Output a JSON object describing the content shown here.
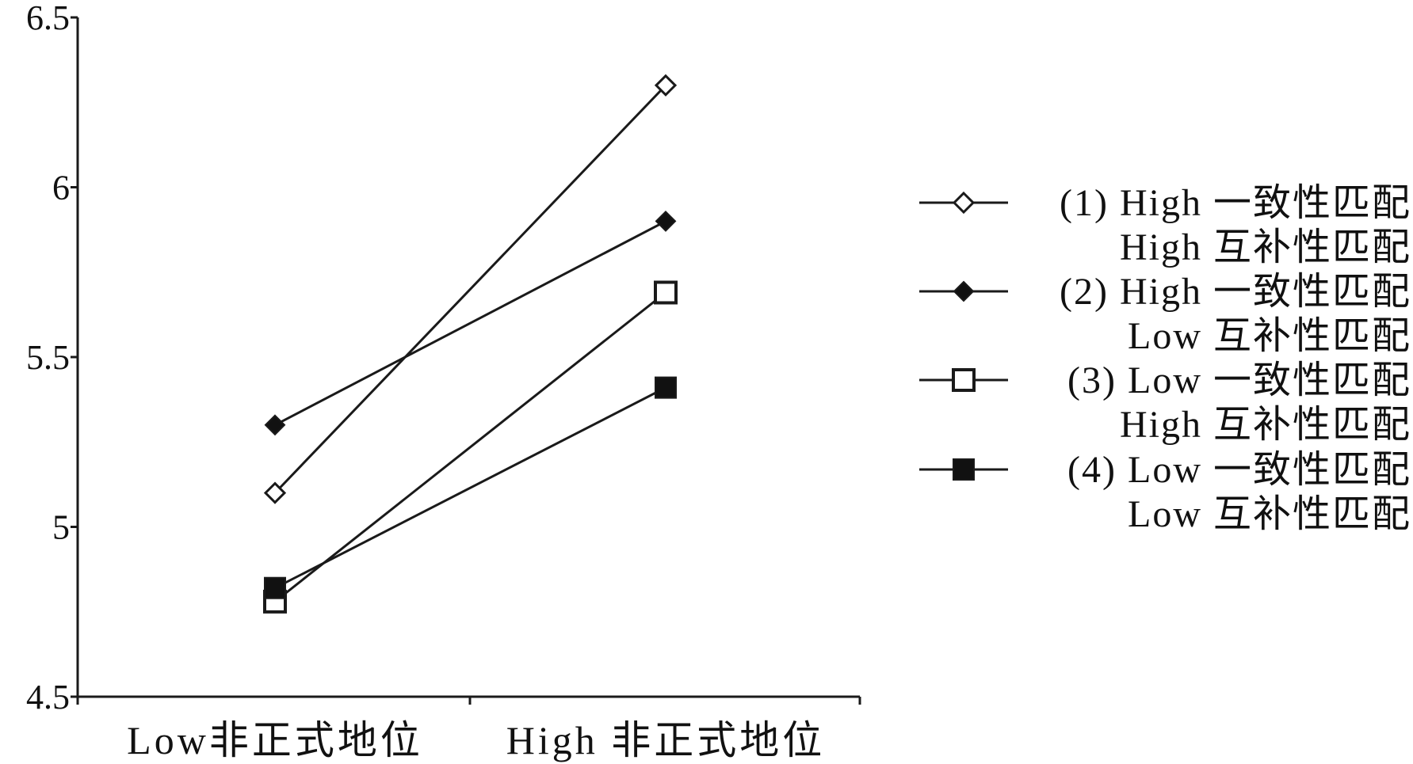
{
  "chart_data": {
    "type": "line",
    "categories": [
      "Low非正式地位",
      "High 非正式地位"
    ],
    "ylim": [
      4.5,
      6.5
    ],
    "yticks": [
      {
        "value": 6.5,
        "label": "6.5"
      },
      {
        "value": 6,
        "label": "6"
      },
      {
        "value": 5.5,
        "label": "5.5"
      },
      {
        "value": 5,
        "label": "5"
      },
      {
        "value": 4.5,
        "label": "4.5"
      }
    ],
    "grid": false,
    "legend_position": "right",
    "series": [
      {
        "name": "(1) High 一致性匹配",
        "name_line2": "High 互补性匹配",
        "marker": "diamond-open",
        "values": [
          5.1,
          6.3
        ]
      },
      {
        "name": "(2) High 一致性匹配",
        "name_line2": "Low 互补性匹配",
        "marker": "diamond-filled",
        "values": [
          5.3,
          5.9
        ]
      },
      {
        "name": "(3) Low 一致性匹配",
        "name_line2": "High 互补性匹配",
        "marker": "square-open",
        "values": [
          4.78,
          5.69
        ]
      },
      {
        "name": "(4) Low 一致性匹配",
        "name_line2": "Low 互补性匹配",
        "marker": "square-filled",
        "values": [
          4.82,
          5.41
        ]
      }
    ],
    "colors": {
      "line": "#1a1a1a",
      "marker_fill_open": "#ffffff",
      "marker_fill_filled": "#111111"
    }
  }
}
